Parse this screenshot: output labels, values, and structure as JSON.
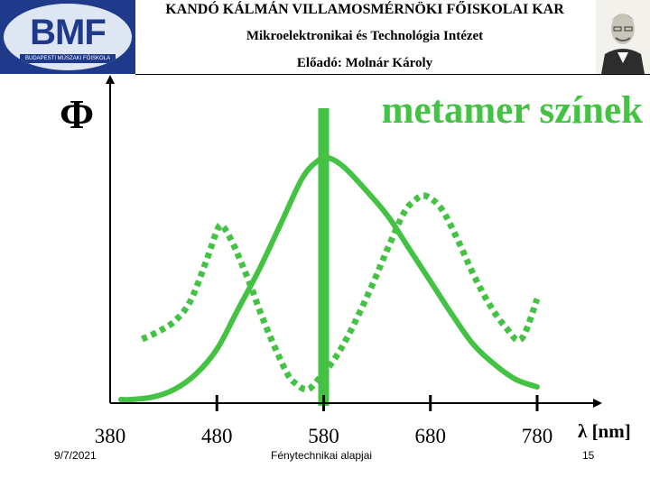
{
  "header": {
    "logo_text": "BMF",
    "logo_subtitle": "BUDAPESTI MŰSZAKI FŐISKOLA",
    "line1": "KANDÓ KÁLMÁN VILLAMOSMÉRNÖKI FŐISKOLAI KAR",
    "line2": "Mikroelektronikai és Technológia Intézet",
    "line3": "Előadó: Molnár Károly"
  },
  "slide": {
    "title": "metamer színek",
    "y_axis_symbol": "Φ",
    "x_axis_label": "λ [nm]"
  },
  "footer": {
    "date": "9/7/2021",
    "center": "Fénytechnikai alapjai",
    "page": "15"
  },
  "colors": {
    "curve": "#44c244",
    "axis": "#000000",
    "logo_blue": "#1f3a8a"
  },
  "chart_data": {
    "type": "line",
    "x_ticks": [
      "380",
      "480",
      "580",
      "680",
      "780"
    ],
    "xlim": [
      380,
      820
    ],
    "ylim": [
      0,
      1
    ],
    "series": [
      {
        "style": "solid",
        "x": [
          390,
          400,
          420,
          440,
          460,
          480,
          500,
          520,
          540,
          560,
          575,
          585,
          600,
          620,
          640,
          660,
          680,
          700,
          720,
          740,
          760,
          780
        ],
        "y": [
          0.0,
          0.0,
          0.01,
          0.04,
          0.1,
          0.2,
          0.36,
          0.52,
          0.7,
          0.88,
          0.95,
          0.96,
          0.92,
          0.83,
          0.73,
          0.6,
          0.47,
          0.34,
          0.22,
          0.14,
          0.08,
          0.05
        ]
      },
      {
        "style": "dotted",
        "x": [
          410,
          425,
          440,
          455,
          470,
          480,
          485,
          495,
          510,
          525,
          545,
          555,
          565,
          575,
          590,
          605,
          625,
          640,
          655,
          665,
          675,
          690,
          705,
          720,
          735,
          750,
          765,
          780
        ],
        "y": [
          0.24,
          0.27,
          0.31,
          0.39,
          0.55,
          0.67,
          0.69,
          0.62,
          0.47,
          0.3,
          0.11,
          0.06,
          0.04,
          0.08,
          0.16,
          0.27,
          0.45,
          0.6,
          0.74,
          0.79,
          0.81,
          0.76,
          0.64,
          0.5,
          0.38,
          0.29,
          0.24,
          0.4
        ]
      },
      {
        "style": "bar",
        "x": [
          580
        ],
        "y": [
          1.0
        ]
      }
    ]
  }
}
